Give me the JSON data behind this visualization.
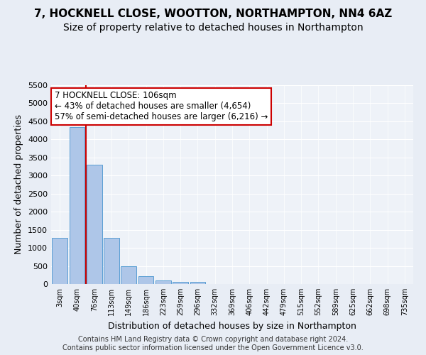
{
  "title1": "7, HOCKNELL CLOSE, WOOTTON, NORTHAMPTON, NN4 6AZ",
  "title2": "Size of property relative to detached houses in Northampton",
  "xlabel": "Distribution of detached houses by size in Northampton",
  "ylabel": "Number of detached properties",
  "bar_values": [
    1270,
    4340,
    3300,
    1280,
    490,
    215,
    90,
    65,
    60,
    0,
    0,
    0,
    0,
    0,
    0,
    0,
    0,
    0,
    0,
    0,
    0
  ],
  "categories": [
    "3sqm",
    "40sqm",
    "76sqm",
    "113sqm",
    "149sqm",
    "186sqm",
    "223sqm",
    "259sqm",
    "296sqm",
    "332sqm",
    "369sqm",
    "406sqm",
    "442sqm",
    "479sqm",
    "515sqm",
    "552sqm",
    "589sqm",
    "625sqm",
    "662sqm",
    "698sqm",
    "735sqm"
  ],
  "bar_color": "#aec6e8",
  "bar_edge_color": "#5a9fd4",
  "vline_x_index": 2,
  "vline_color": "#cc0000",
  "annotation_line1": "7 HOCKNELL CLOSE: 106sqm",
  "annotation_line2": "← 43% of detached houses are smaller (4,654)",
  "annotation_line3": "57% of semi-detached houses are larger (6,216) →",
  "annotation_box_color": "#ffffff",
  "annotation_box_edge": "#cc0000",
  "ylim": [
    0,
    5500
  ],
  "yticks": [
    0,
    500,
    1000,
    1500,
    2000,
    2500,
    3000,
    3500,
    4000,
    4500,
    5000,
    5500
  ],
  "bg_color": "#e8edf5",
  "plot_bg_color": "#eef2f8",
  "footnote_line1": "Contains HM Land Registry data © Crown copyright and database right 2024.",
  "footnote_line2": "Contains public sector information licensed under the Open Government Licence v3.0.",
  "title1_fontsize": 11,
  "title2_fontsize": 10,
  "xlabel_fontsize": 9,
  "ylabel_fontsize": 9,
  "annotation_fontsize": 8.5,
  "tick_fontsize": 7,
  "ytick_fontsize": 8,
  "footnote_fontsize": 7
}
